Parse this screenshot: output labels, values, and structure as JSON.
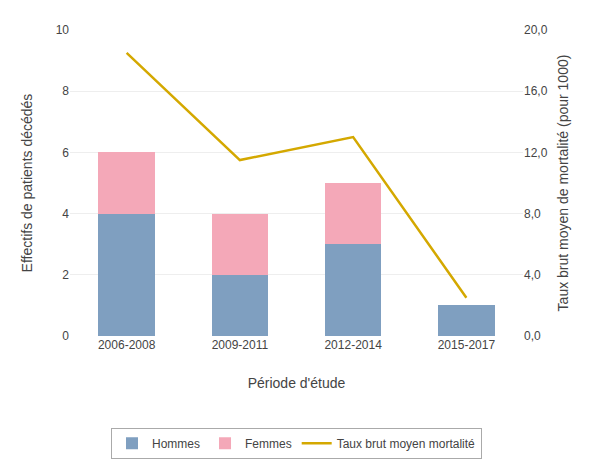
{
  "chart_data": {
    "type": "bar",
    "stacked": true,
    "categories": [
      "2006-2008",
      "2009-2011",
      "2012-2014",
      "2015-2017"
    ],
    "series": [
      {
        "name": "Hommes",
        "color": "#7f9fc0",
        "values": [
          4,
          2,
          3,
          1
        ]
      },
      {
        "name": "Femmes",
        "color": "#f4a8b8",
        "values": [
          2,
          2,
          2,
          0
        ]
      },
      {
        "name": "Taux brut moyen mortalité",
        "type": "line",
        "axis": "y2",
        "color": "#d4a800",
        "values": [
          18.5,
          11.5,
          13.0,
          2.5
        ]
      }
    ],
    "xlabel": "Période d'étude",
    "ylabel": "Effectifs de patients décédés",
    "y2label": "Taux brut moyen de mortalité (pour 1000)",
    "ylim": [
      0,
      10
    ],
    "yticks": [
      0,
      2,
      4,
      6,
      8,
      10
    ],
    "y2lim": [
      0,
      20
    ],
    "y2ticks": [
      {
        "value": 0.0,
        "label": "0,0"
      },
      {
        "value": 4.0,
        "label": "4,0"
      },
      {
        "value": 8.0,
        "label": "8,0"
      },
      {
        "value": 12.0,
        "label": "12,0"
      },
      {
        "value": 16.0,
        "label": "16,0"
      },
      {
        "value": 20.0,
        "label": "20,0"
      }
    ],
    "grid": true,
    "legend": "bottom"
  }
}
